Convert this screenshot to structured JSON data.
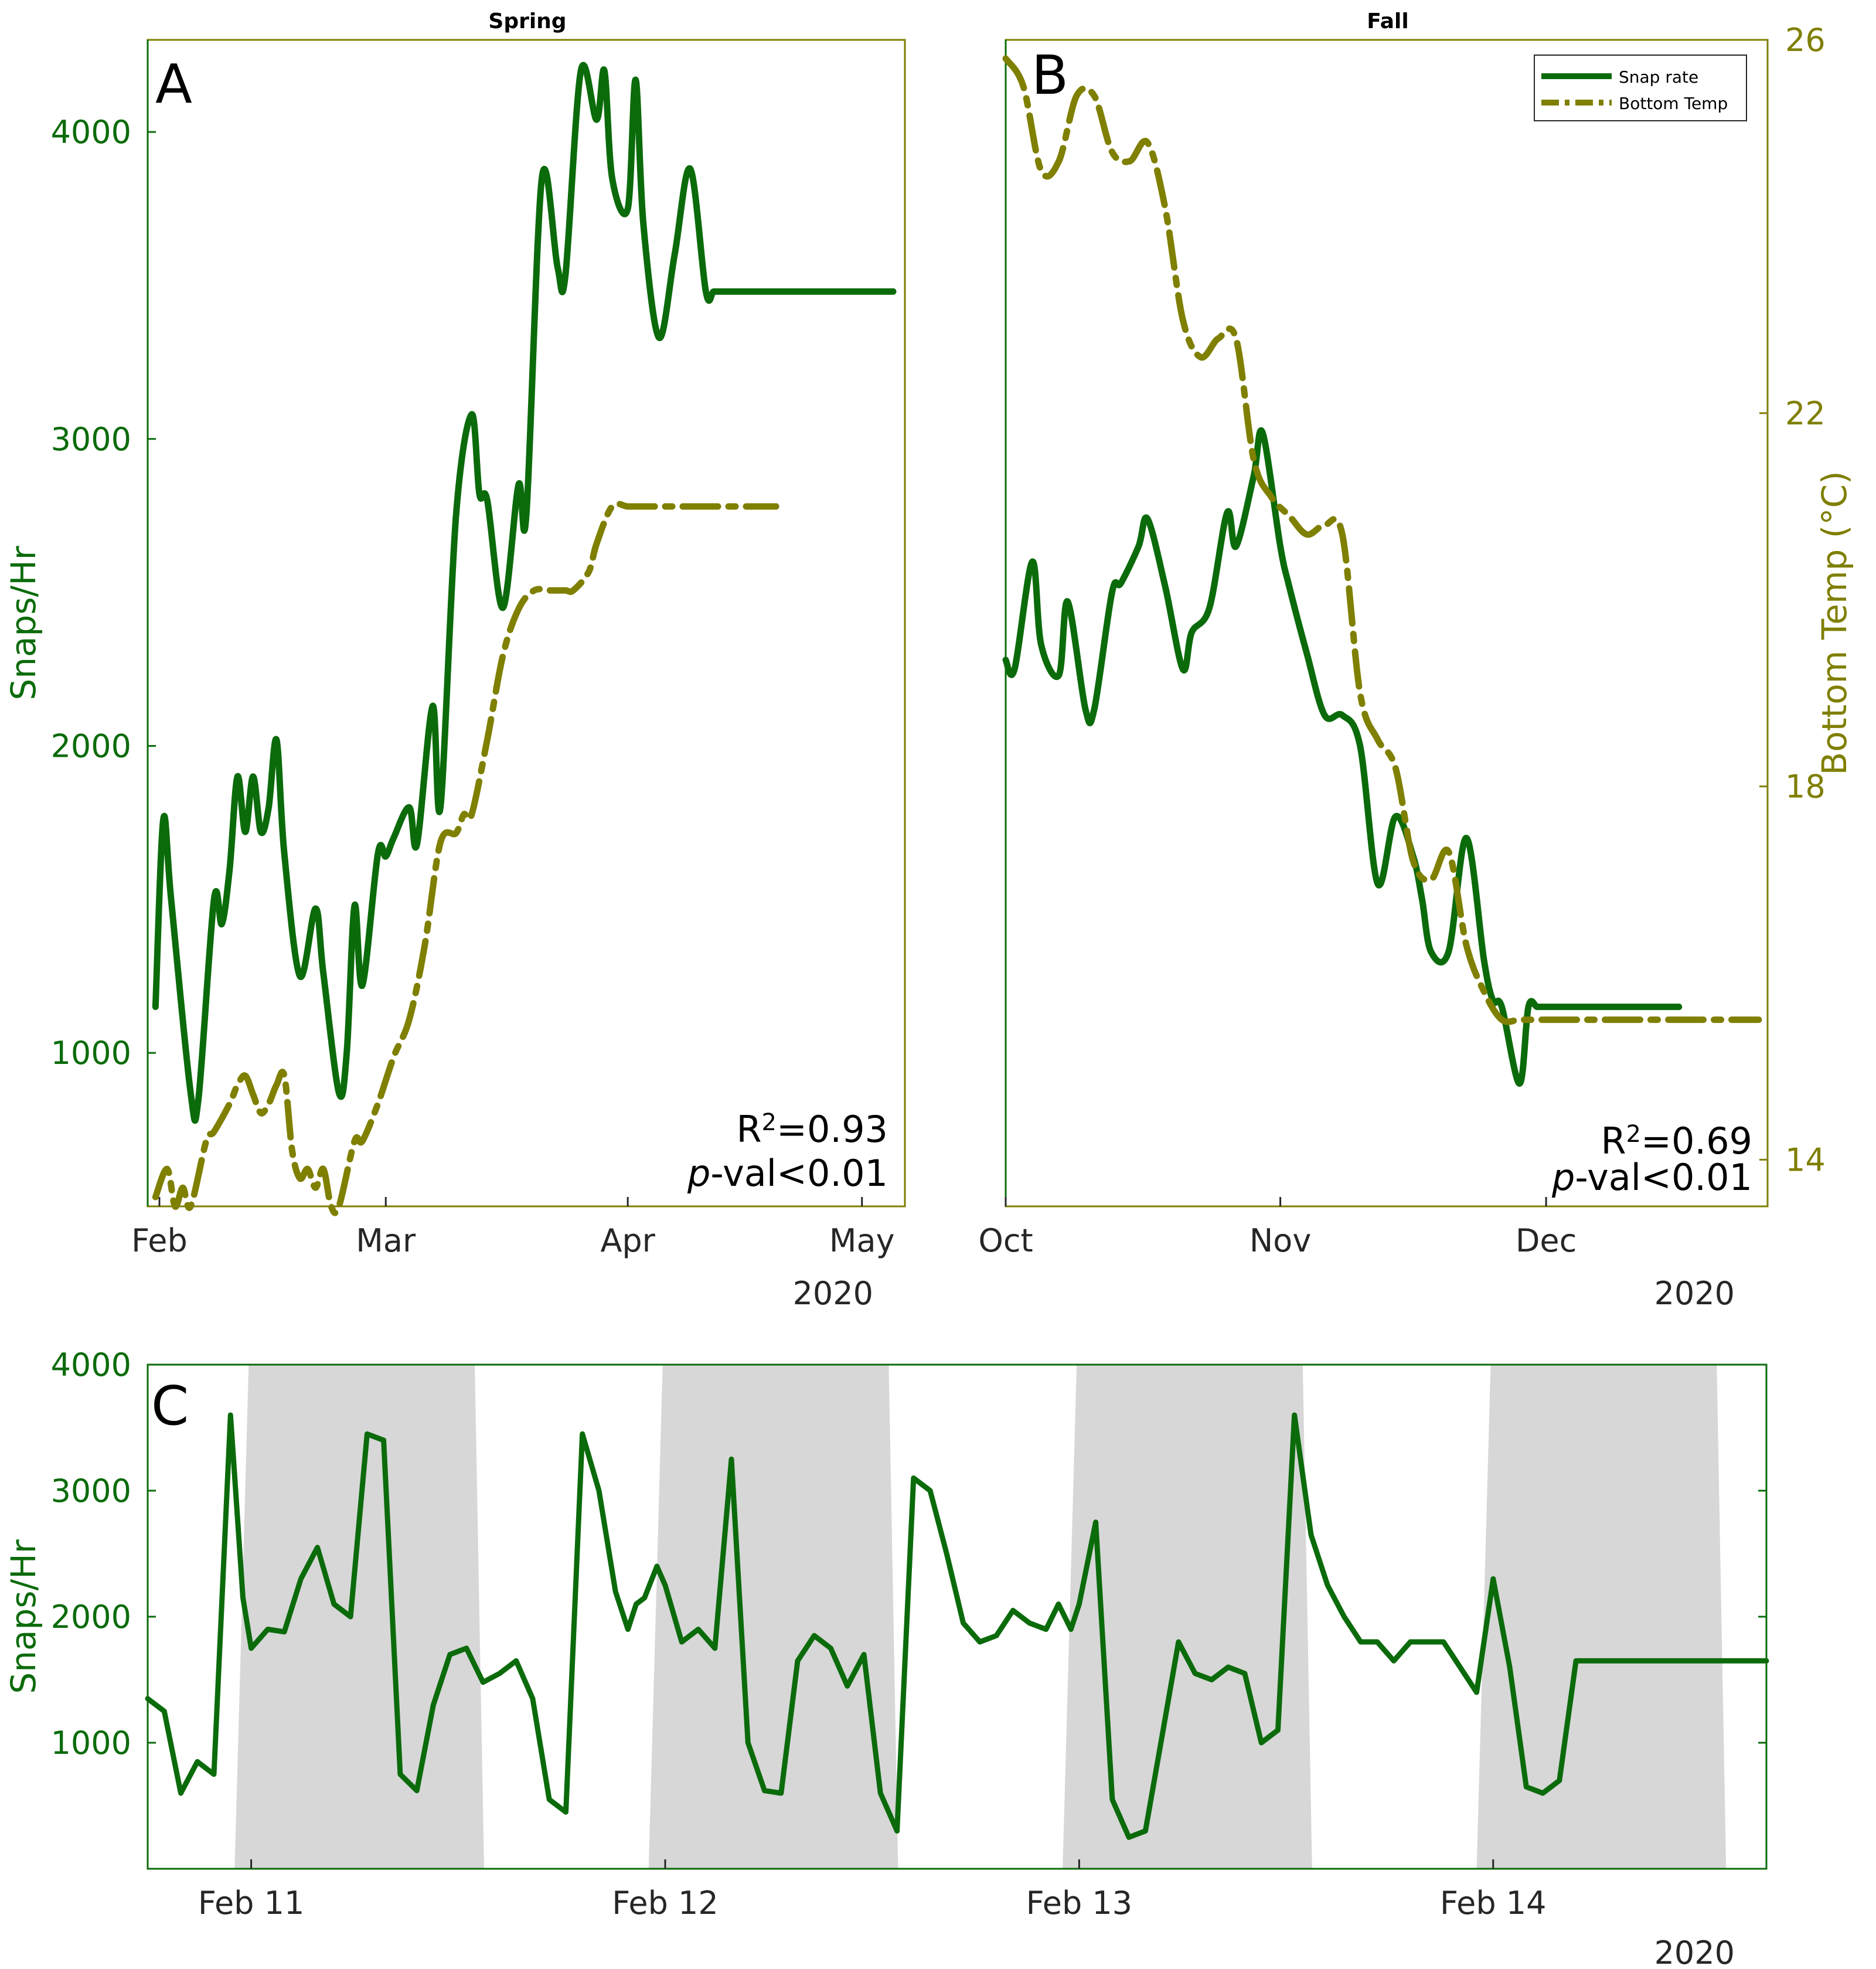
{
  "colors": {
    "snap": "#0b6b0b",
    "temp": "#7f7f00",
    "night": "#d7d7d7",
    "axis": "#262626"
  },
  "chart_data": [
    {
      "id": "A",
      "type": "line",
      "panel_label": "A",
      "title": "Spring",
      "ylabel_left": "Snaps/Hr",
      "ylim_left": [
        500,
        4300
      ],
      "yticks_left": [
        1000,
        2000,
        3000,
        4000
      ],
      "ylim_right": [
        13.5,
        26
      ],
      "xlim": [
        -1.5,
        95.5
      ],
      "xticks": [
        {
          "label": "Feb",
          "x": 0
        },
        {
          "label": "Mar",
          "x": 29
        },
        {
          "label": "Apr",
          "x": 60
        },
        {
          "label": "May",
          "x": 90
        }
      ],
      "year_label": "2020",
      "annotation": {
        "r2_prefix": "R",
        "r2_sup": "2",
        "r2_value": "=0.93",
        "p_italic": "p",
        "p_rest": "-val<0.01"
      },
      "series": [
        {
          "name": "Snap rate",
          "axis": "left",
          "x": [
            -0.5,
            0.5,
            1.5,
            4,
            5,
            7,
            8,
            9,
            10,
            11,
            12,
            13,
            14,
            15,
            16,
            18,
            20,
            21,
            23,
            24,
            25,
            26,
            28,
            29,
            30,
            32,
            33,
            35,
            36,
            38,
            40,
            41,
            42,
            44,
            46,
            47,
            49,
            51,
            52,
            54,
            56,
            57,
            58,
            60,
            61,
            62,
            64,
            66,
            68,
            70,
            71,
            72,
            73,
            75,
            76,
            77,
            79,
            80,
            81,
            82,
            84,
            85,
            86,
            87,
            88,
            89,
            90,
            91,
            92,
            93,
            94
          ],
          "values": [
            1150,
            1760,
            1500,
            870,
            850,
            1500,
            1420,
            1600,
            1900,
            1720,
            1900,
            1720,
            1800,
            2020,
            1650,
            1250,
            1470,
            1260,
            870,
            1000,
            1480,
            1220,
            1650,
            1640,
            1700,
            1800,
            1680,
            2130,
            1800,
            2750,
            3080,
            2820,
            2800,
            2450,
            2850,
            2750,
            3850,
            3560,
            3530,
            4200,
            4040,
            4200,
            3850,
            3750,
            4170,
            3700,
            3330,
            3600,
            3880,
            3480,
            3480,
            3480,
            3480,
            3480,
            3480,
            3480,
            3480,
            3480,
            3480,
            3480,
            3480,
            3480,
            3480,
            3480,
            3480,
            3480,
            3480,
            3480,
            3480,
            3480,
            3480
          ]
        },
        {
          "name": "Bottom Temp",
          "axis": "right",
          "x": [
            -0.5,
            1,
            2,
            3,
            4,
            6,
            7,
            9,
            10,
            11,
            12,
            13,
            14,
            15,
            16,
            17,
            18,
            19,
            20,
            21,
            22,
            23,
            25,
            26,
            28,
            30,
            32,
            34,
            36,
            38,
            39,
            40,
            42,
            44,
            46,
            48,
            50,
            52,
            53,
            55,
            56,
            58,
            60,
            62,
            64,
            65,
            66,
            67,
            69,
            70,
            71,
            72,
            73,
            74,
            75,
            76,
            77,
            78,
            79
          ],
          "values": [
            13.6,
            13.9,
            13.5,
            13.7,
            13.3,
            14.2,
            14.3,
            14.6,
            14.8,
            14.9,
            14.7,
            14.5,
            14.6,
            14.8,
            14.9,
            14.1,
            13.8,
            13.9,
            13.7,
            13.9,
            13.5,
            13.5,
            14.2,
            14.2,
            14.6,
            15.1,
            15.5,
            16.3,
            17.4,
            17.5,
            17.7,
            17.7,
            18.5,
            19.4,
            19.9,
            20.1,
            20.1,
            20.1,
            20.1,
            20.3,
            20.6,
            21.0,
            21.0,
            21.0,
            21.0,
            21.0,
            21.0,
            21.0,
            21.0,
            21.0,
            21.0,
            21.0,
            21.0,
            21.0,
            21.0,
            21.0,
            21.0,
            21.0,
            21.0
          ]
        }
      ]
    },
    {
      "id": "B",
      "type": "line",
      "panel_label": "B",
      "title": "Fall",
      "ylabel_right": "Bottom Temp (°C)",
      "ylim_left": [
        500,
        4300
      ],
      "ylim_right": [
        13.5,
        26
      ],
      "yticks_right": [
        14,
        18,
        22,
        26
      ],
      "xlim": [
        0,
        86
      ],
      "xticks": [
        {
          "label": "Oct",
          "x": 0
        },
        {
          "label": "Nov",
          "x": 31
        },
        {
          "label": "Dec",
          "x": 61
        }
      ],
      "year_label": "2020",
      "annotation": {
        "r2_prefix": "R",
        "r2_sup": "2",
        "r2_value": "=0.69",
        "p_italic": "p",
        "p_rest": "-val<0.01"
      },
      "legend": [
        {
          "label": "Snap rate",
          "style": "solid"
        },
        {
          "label": "Bottom Temp",
          "style": "dashed"
        }
      ],
      "series": [
        {
          "name": "Snap rate",
          "axis": "left",
          "x": [
            0,
            1,
            3,
            4,
            6,
            7,
            9,
            10,
            12,
            13,
            15,
            16,
            18,
            20,
            21,
            23,
            25,
            26,
            28,
            29,
            31,
            32,
            34,
            36,
            38,
            40,
            42,
            44,
            46,
            47,
            48,
            50,
            52,
            54,
            55,
            56,
            58,
            59,
            60,
            61,
            62,
            63,
            64,
            66,
            68,
            70,
            71,
            72,
            74,
            76
          ],
          "values": [
            2280,
            2250,
            2600,
            2330,
            2230,
            2470,
            2120,
            2120,
            2500,
            2530,
            2650,
            2740,
            2520,
            2250,
            2370,
            2450,
            2760,
            2650,
            2880,
            3020,
            2650,
            2520,
            2300,
            2100,
            2100,
            2000,
            1550,
            1770,
            1640,
            1500,
            1330,
            1330,
            1700,
            1300,
            1170,
            1150,
            900,
            1150,
            1150,
            1150,
            1150,
            1150,
            1150,
            1150,
            1150,
            1150,
            1150,
            1150,
            1150,
            1150
          ]
        },
        {
          "name": "Bottom Temp",
          "axis": "right",
          "x": [
            0,
            2,
            4,
            6,
            8,
            10,
            12,
            14,
            16,
            18,
            20,
            22,
            24,
            26,
            28,
            30,
            32,
            34,
            36,
            38,
            40,
            42,
            44,
            46,
            48,
            50,
            52,
            54,
            56,
            58,
            60,
            62,
            64,
            66,
            68,
            70,
            72,
            74,
            76,
            78,
            80,
            82,
            84,
            85
          ],
          "values": [
            25.8,
            25.5,
            24.6,
            24.7,
            25.4,
            25.4,
            24.8,
            24.7,
            24.9,
            24.2,
            23.0,
            22.6,
            22.8,
            22.8,
            21.5,
            21.1,
            20.9,
            20.7,
            20.8,
            20.7,
            19.0,
            18.5,
            18.2,
            17.2,
            17.0,
            17.3,
            16.3,
            15.8,
            15.5,
            15.5,
            15.5,
            15.5,
            15.5,
            15.5,
            15.5,
            15.5,
            15.5,
            15.5,
            15.5,
            15.5,
            15.5,
            15.5,
            15.5,
            15.5
          ]
        }
      ]
    },
    {
      "id": "C",
      "type": "line",
      "panel_label": "C",
      "ylabel_left": "Snaps/Hr",
      "ylim_left": [
        0,
        4000
      ],
      "yticks_left": [
        1000,
        2000,
        3000,
        4000
      ],
      "xlim": [
        10.75,
        14.66
      ],
      "xticks": [
        {
          "label": "Feb 11",
          "x": 11
        },
        {
          "label": "Feb 12",
          "x": 12
        },
        {
          "label": "Feb 13",
          "x": 13
        },
        {
          "label": "Feb 14",
          "x": 14
        }
      ],
      "year_label": "2020",
      "night_periods": [
        [
          10.96,
          11.54
        ],
        [
          11.96,
          12.54
        ],
        [
          12.96,
          13.54
        ],
        [
          13.96,
          14.54
        ]
      ],
      "series": [
        {
          "name": "Snap rate",
          "axis": "left",
          "x": [
            10.75,
            10.79,
            10.83,
            10.87,
            10.91,
            10.95,
            10.98,
            11.0,
            11.04,
            11.08,
            11.12,
            11.16,
            11.2,
            11.24,
            11.28,
            11.32,
            11.36,
            11.4,
            11.44,
            11.48,
            11.52,
            11.56,
            11.6,
            11.64,
            11.68,
            11.72,
            11.76,
            11.8,
            11.84,
            11.88,
            11.91,
            11.93,
            11.95,
            11.98,
            12.0,
            12.04,
            12.08,
            12.12,
            12.16,
            12.2,
            12.24,
            12.28,
            12.32,
            12.36,
            12.4,
            12.44,
            12.48,
            12.52,
            12.56,
            12.6,
            12.64,
            12.68,
            12.72,
            12.76,
            12.8,
            12.84,
            12.88,
            12.92,
            12.95,
            12.98,
            13.0,
            13.04,
            13.08,
            13.12,
            13.16,
            13.2,
            13.24,
            13.28,
            13.32,
            13.36,
            13.4,
            13.44,
            13.48,
            13.52,
            13.56,
            13.6,
            13.64,
            13.68,
            13.72,
            13.76,
            13.8,
            13.84,
            13.88,
            13.92,
            13.96,
            14.0,
            14.04,
            14.08,
            14.12,
            14.16,
            14.2,
            14.24,
            14.28,
            14.32,
            14.36,
            14.4,
            14.44,
            14.48,
            14.52,
            14.56,
            14.6,
            14.64,
            14.66
          ],
          "values": [
            1350,
            1250,
            600,
            850,
            750,
            3600,
            2150,
            1750,
            1900,
            1880,
            2300,
            2550,
            2100,
            2000,
            3450,
            3400,
            750,
            620,
            1300,
            1700,
            1750,
            1480,
            1550,
            1650,
            1350,
            550,
            450,
            3450,
            3000,
            2200,
            1900,
            2100,
            2150,
            2400,
            2250,
            1800,
            1900,
            1750,
            3250,
            1000,
            620,
            600,
            1650,
            1850,
            1750,
            1450,
            1700,
            600,
            300,
            3100,
            3000,
            2500,
            1950,
            1800,
            1850,
            2050,
            1950,
            1900,
            2100,
            1900,
            2100,
            2750,
            550,
            250,
            300,
            1050,
            1800,
            1550,
            1500,
            1600,
            1550,
            1000,
            1100,
            3600,
            2650,
            2250,
            2000,
            1800,
            1800,
            1650,
            1800,
            1800,
            1800,
            1600,
            1400,
            2300,
            1600,
            650,
            600,
            700,
            1650,
            1650,
            1650,
            1650,
            1650,
            1650,
            1650,
            1650,
            1650,
            1650,
            1650,
            1650,
            1650
          ]
        }
      ]
    }
  ]
}
